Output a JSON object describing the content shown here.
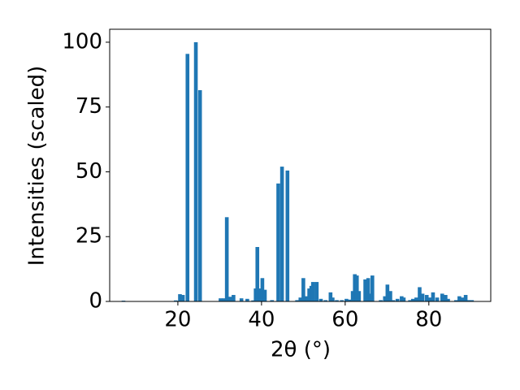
{
  "chart_data": {
    "type": "bar",
    "xlabel": "2θ (°)",
    "ylabel": "Intensities (scaled)",
    "color": "#1f77b4",
    "x": [
      7.0,
      19.5,
      20.5,
      21.2,
      22.3,
      24.3,
      25.3,
      30.2,
      31.0,
      31.7,
      32.5,
      33.3,
      35.2,
      36.6,
      38.0,
      38.6,
      39.0,
      39.8,
      40.2,
      40.8,
      42.5,
      44.0,
      44.9,
      46.2,
      48.5,
      49.3,
      50.0,
      50.8,
      51.4,
      51.9,
      52.3,
      53.2,
      54.2,
      55.3,
      56.5,
      57.0,
      58.0,
      59.2,
      60.3,
      61.0,
      61.8,
      62.3,
      62.8,
      63.3,
      64.8,
      65.5,
      66.0,
      66.5,
      68.5,
      69.5,
      70.1,
      70.8,
      71.5,
      72.5,
      73.5,
      74.0,
      75.5,
      76.2,
      77.0,
      77.8,
      78.5,
      79.5,
      80.3,
      81.0,
      82.0,
      83.2,
      84.0,
      84.6,
      86.5,
      87.3,
      88.0,
      88.8,
      89.5,
      90.3
    ],
    "values": [
      0.3,
      0.4,
      2.8,
      2.5,
      95.5,
      100,
      81.5,
      1.2,
      1.2,
      32.5,
      1.8,
      2.5,
      1.2,
      1.0,
      0.4,
      5.0,
      21.0,
      5.0,
      9.0,
      4.5,
      0.5,
      45.5,
      52.0,
      50.5,
      0.5,
      1.5,
      9.0,
      2.0,
      5.0,
      6.0,
      7.5,
      7.5,
      1.0,
      0.5,
      3.5,
      1.5,
      0.5,
      0.5,
      1.0,
      0.7,
      4.0,
      10.5,
      10.0,
      4.0,
      8.5,
      9.0,
      3.0,
      10.0,
      0.5,
      2.0,
      6.5,
      4.0,
      0.5,
      1.0,
      2.0,
      1.5,
      0.5,
      1.0,
      1.5,
      5.5,
      3.0,
      2.5,
      1.5,
      3.5,
      1.5,
      3.0,
      2.5,
      1.0,
      0.5,
      2.0,
      1.5,
      2.5,
      0.5,
      0.5
    ],
    "xlim": [
      3.7,
      94.8
    ],
    "xticks": [
      20,
      40,
      60,
      80
    ],
    "ylim": [
      0,
      105
    ],
    "yticks": [
      0,
      25,
      50,
      75,
      100
    ]
  }
}
